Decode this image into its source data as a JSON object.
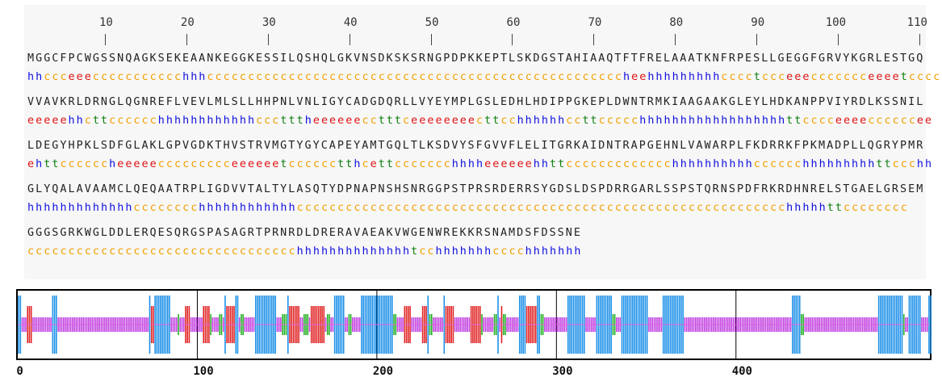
{
  "ruler": {
    "ticks": [
      "10",
      "20",
      "30",
      "40",
      "50",
      "60",
      "70",
      "80",
      "90",
      "100",
      "110"
    ],
    "tick_char": "|"
  },
  "sequence": {
    "rows": [
      {
        "aa": "MGGCFPCWGSSNQAGKSEKEAANKEGGKESSILQSHQLGKVNSDKSKSRNGPDPKKEPTLSKDGSTAHIAAQTFTFRELAAATKNFRPESLLGEGGFGRVYKGRLESTGQ",
        "ss": "hhccceeeccccccccccchhhcccccccccccccccccccccccccccccccccccccccccccccccccccheehhhhhhhhhcccctccceeeccccccceeeetccccttch"
      },
      {
        "aa": "VVAVKRLDRNGLQGNREFLVEVLMLSLLHHPNLVNLIGYCADGDQRLLVYEYMPLGSLEDHLHDIPPGKEPLDWNTRMKIAAGAAKGLEYLHDKANPPVIYRDLKSSNIL",
        "ss": "eeeeehhcttcccccchhhhhhhhhhhhccctttheeeeeecctttceeeeeeeecttcchhhhhhccttccccchhhhhhhhhhhhhhhhhhttcccceeeeccccccee"
      },
      {
        "aa": "LDEGYHPKLSDFGLAKLGPVGDKTHVSTRVMGTYGYCAPEYAMTGQLTLKSDVYSFGVVFLELITGRKAIDNTRAPGEHNLVAWARPLFKDRRKFPKMADPLLQGRYPMR",
        "ss": "ehttccccccheeeeeccccccccceeeeeetcccccctthcettccccccchhhheeeeeehhttccccccccccccchhhhhhhhhhcccccchhhhhhhhhttccchh"
      },
      {
        "aa": "GLYQALAVAAMCLQEQAATRPLIGDVVTALTYLASQTYDPNAPNSHSNRGGPSTPRSRDERRSYGDSLDSPDRRGARLSSPSTQRNSPDFRKRDHNRELSTGAELGRSEM",
        "ss": "hhhhhhhhhhhhhcccccccchhhhhhhhhhhhcccccccccccccccccccccccccccccccccccccccccccccccccccccccccccchhhhhttcccccccc"
      },
      {
        "aa": "GGGSGRKWGLDDLERQESQRGSPASAGRTPRNRDLDRERAVAEAKVWGENWREKKRSNAMDSFDSSNE",
        "ss": "ccccccccccccccccccccccccccccccccchhhhhhhhhhhhhhtcchhhhhhhcccchhhhhhh"
      }
    ]
  },
  "track": {
    "axis_ticks": [
      "0",
      "100",
      "200",
      "300",
      "400"
    ],
    "axis_values": [
      0,
      100,
      200,
      300,
      400
    ],
    "max_position": 508,
    "colors": {
      "h": "#1a8fe8",
      "e": "#e02020",
      "t": "#20b020",
      "c": "#c040e0"
    }
  }
}
